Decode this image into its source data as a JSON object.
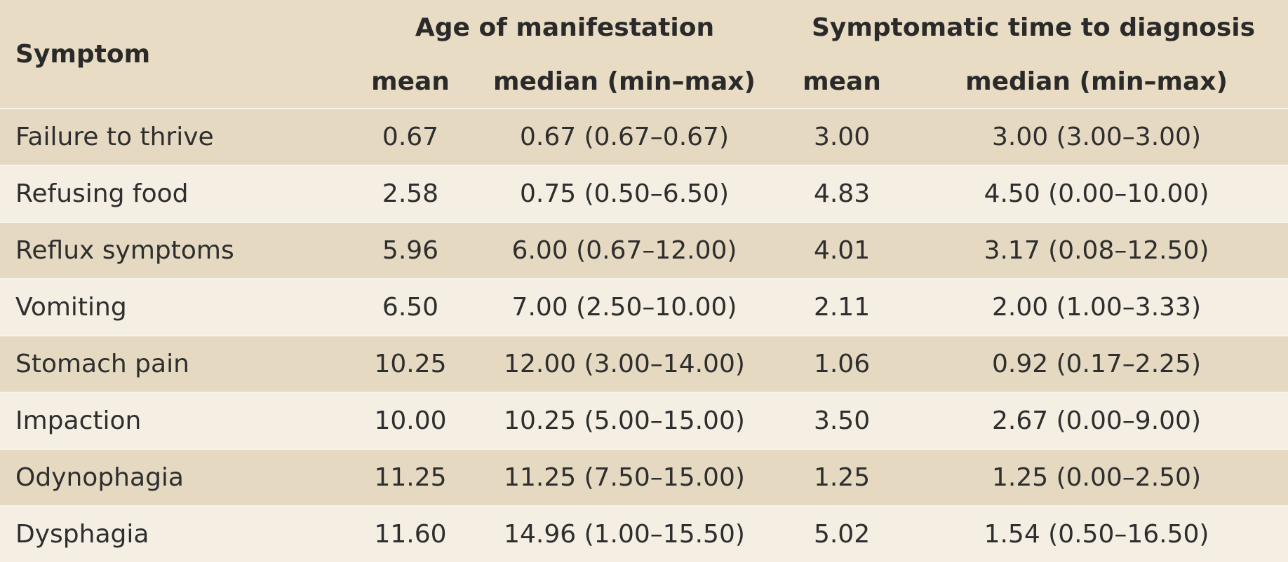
{
  "header": {
    "symptom": "Symptom",
    "age_group": "Age of manifestation",
    "time_group": "Symptomatic time to diagnosis",
    "age_mean": "mean",
    "age_median": "median (min–max)",
    "time_mean": "mean",
    "time_median": "median (min–max)"
  },
  "rows": [
    {
      "symptom": "Failure to thrive",
      "age_mean": "0.67",
      "age_median": "0.67 (0.67–0.67)",
      "time_mean": "3.00",
      "time_median": "3.00 (3.00–3.00)"
    },
    {
      "symptom": "Refusing food",
      "age_mean": "2.58",
      "age_median": "0.75 (0.50–6.50)",
      "time_mean": "4.83",
      "time_median": "4.50 (0.00–10.00)"
    },
    {
      "symptom": "Reflux symptoms",
      "age_mean": "5.96",
      "age_median": "6.00 (0.67–12.00)",
      "time_mean": "4.01",
      "time_median": "3.17 (0.08–12.50)"
    },
    {
      "symptom": "Vomiting",
      "age_mean": "6.50",
      "age_median": "7.00 (2.50–10.00)",
      "time_mean": "2.11",
      "time_median": "2.00 (1.00–3.33)"
    },
    {
      "symptom": "Stomach pain",
      "age_mean": "10.25",
      "age_median": "12.00 (3.00–14.00)",
      "time_mean": "1.06",
      "time_median": "0.92 (0.17–2.25)"
    },
    {
      "symptom": "Impaction",
      "age_mean": "10.00",
      "age_median": "10.25 (5.00–15.00)",
      "time_mean": "3.50",
      "time_median": "2.67 (0.00–9.00)"
    },
    {
      "symptom": "Odynophagia",
      "age_mean": "11.25",
      "age_median": "11.25 (7.50–15.00)",
      "time_mean": "1.25",
      "time_median": "1.25 (0.00–2.50)"
    },
    {
      "symptom": "Dysphagia",
      "age_mean": "11.60",
      "age_median": "14.96 (1.00–15.50)",
      "time_mean": "5.02",
      "time_median": "1.54 (0.50–16.50)"
    }
  ]
}
